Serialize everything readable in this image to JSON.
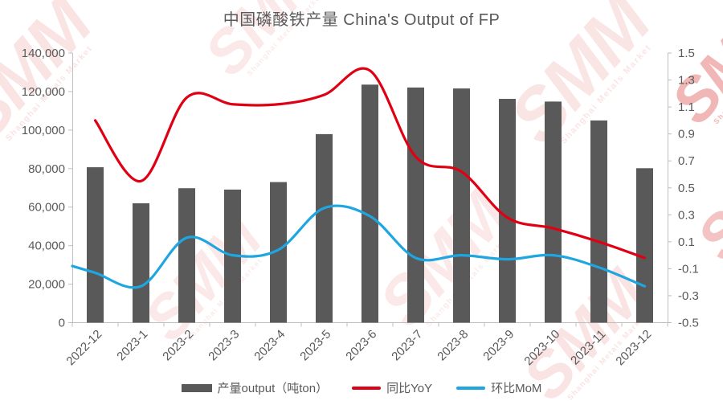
{
  "title": "中国磷酸铁产量   China's Output of FP",
  "watermark": {
    "brand": "SMM",
    "subtext": "Shanghai Metals Market"
  },
  "chart_data": {
    "type": "combo-bar-line",
    "title": "中国磷酸铁产量   China's Output of FP",
    "categories": [
      "2022-12",
      "2023-1",
      "2023-2",
      "2023-3",
      "2023-4",
      "2023-5",
      "2023-6",
      "2023-7",
      "2023-8",
      "2023-9",
      "2023-10",
      "2023-11",
      "2023-12"
    ],
    "series": [
      {
        "name": "产量output（吨ton）",
        "type": "bar",
        "axis": "left",
        "color": "#595959",
        "values": [
          80700,
          62000,
          69800,
          69100,
          73000,
          97900,
          123600,
          122100,
          121600,
          116200,
          114800,
          105000,
          80200
        ]
      },
      {
        "name": "同比YoY",
        "type": "line",
        "axis": "right",
        "color": "#e00013",
        "values": [
          1.0,
          0.55,
          1.17,
          1.12,
          1.12,
          1.19,
          1.37,
          0.73,
          0.62,
          0.28,
          0.2,
          0.1,
          -0.02
        ]
      },
      {
        "name": "环比MoM",
        "type": "line",
        "axis": "right",
        "color": "#1fa6e1",
        "edge_lead_in": -0.08,
        "values": [
          -0.13,
          -0.23,
          0.13,
          0.0,
          0.04,
          0.35,
          0.29,
          -0.02,
          0.0,
          -0.03,
          0.0,
          -0.09,
          -0.23
        ]
      }
    ],
    "left_axis": {
      "min": 0,
      "max": 140000,
      "step": 20000,
      "tick_labels": [
        "0",
        "20,000",
        "40,000",
        "60,000",
        "80,000",
        "100,000",
        "120,000",
        "140,000"
      ]
    },
    "right_axis": {
      "min": -0.5,
      "max": 1.5,
      "step": 0.2,
      "tick_labels": [
        "-0.5",
        "-0.3",
        "-0.1",
        "0.1",
        "0.3",
        "0.5",
        "0.7",
        "0.9",
        "1.1",
        "1.3",
        "1.5"
      ]
    },
    "grid": "off",
    "legend_position": "bottom",
    "axis_color": "#bfbfbf",
    "label_color": "#595959"
  }
}
